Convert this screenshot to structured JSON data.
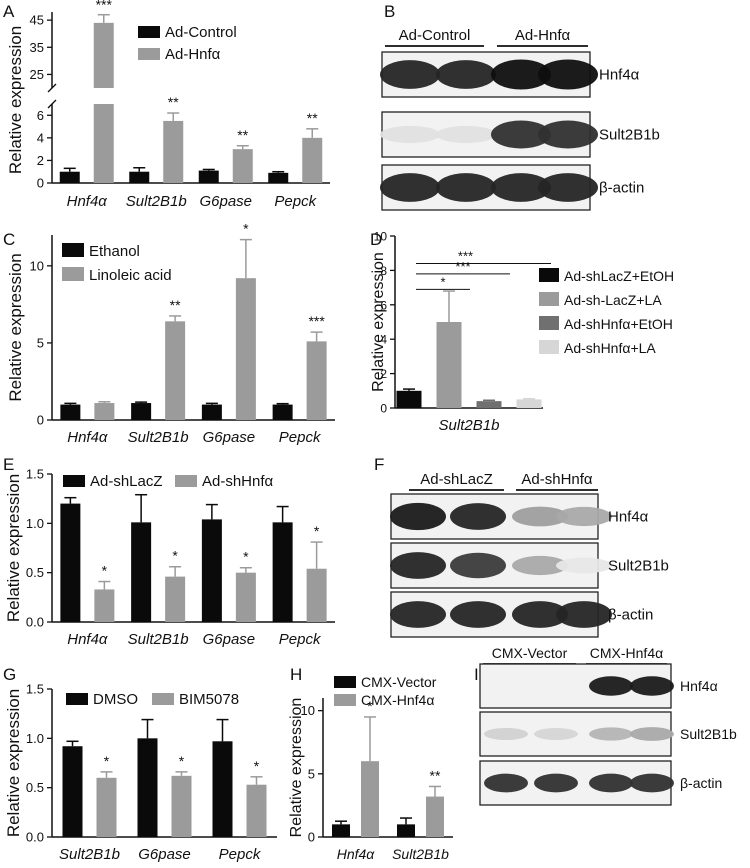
{
  "figure": {
    "background": "#ffffff"
  },
  "colors": {
    "black": "#0a0a0a",
    "gray": "#9b9b9b",
    "dark_gray": "#707070",
    "light_gray": "#d6d6d6"
  },
  "chart_data": [
    {
      "panel": "A",
      "type": "bar",
      "ylabel": "Relative expression",
      "categories": [
        "Hnf4α",
        "Sult2B1b",
        "G6pase",
        "Pepck"
      ],
      "broken_axis": {
        "lower_ticks": [
          0,
          2,
          4,
          6
        ],
        "upper_ticks": [
          25,
          35,
          45
        ]
      },
      "legend": [
        "Ad-Control",
        "Ad-Hnfα"
      ],
      "series": [
        {
          "name": "Ad-Control",
          "values": [
            1.0,
            1.0,
            1.1,
            0.9
          ],
          "errors": [
            0.3,
            0.35,
            0.1,
            0.1
          ],
          "color": "#0a0a0a"
        },
        {
          "name": "Ad-Hnfα",
          "values": [
            44,
            5.5,
            3.0,
            4.0
          ],
          "errors": [
            3,
            0.7,
            0.3,
            0.8
          ],
          "color": "#9b9b9b"
        }
      ],
      "annotations": [
        "***",
        "**",
        "**",
        "**"
      ]
    },
    {
      "panel": "C",
      "type": "bar",
      "ylabel": "Relative expression",
      "categories": [
        "Hnf4α",
        "Sult2B1b",
        "G6pase",
        "Pepck"
      ],
      "ylim": [
        0,
        12
      ],
      "yticks": [
        0,
        5,
        10
      ],
      "legend": [
        "Ethanol",
        "Linoleic acid"
      ],
      "series": [
        {
          "name": "Ethanol",
          "values": [
            1.0,
            1.1,
            1.0,
            1.0
          ],
          "errors": [
            0.08,
            0.06,
            0.08,
            0.06
          ],
          "color": "#0a0a0a"
        },
        {
          "name": "Linoleic acid",
          "values": [
            1.1,
            6.4,
            9.2,
            5.1
          ],
          "errors": [
            0.08,
            0.35,
            2.5,
            0.6
          ],
          "color": "#9b9b9b"
        }
      ],
      "annotations": [
        "",
        "**",
        "*",
        "***"
      ]
    },
    {
      "panel": "D",
      "type": "bar",
      "ylabel": "Relative expression",
      "categories": [
        "Sult2B1b"
      ],
      "ylim": [
        0,
        10
      ],
      "yticks": [
        0,
        2,
        4,
        6,
        8,
        10
      ],
      "legend": [
        "Ad-shLacZ+EtOH",
        "Ad-sh-LacZ+LA",
        "Ad-shHnfα+EtOH",
        "Ad-shHnfα+LA"
      ],
      "series": [
        {
          "name": "Ad-shLacZ+EtOH",
          "values": [
            1.0
          ],
          "errors": [
            0.1
          ],
          "color": "#0a0a0a"
        },
        {
          "name": "Ad-sh-LacZ+LA",
          "values": [
            5.0
          ],
          "errors": [
            1.8
          ],
          "color": "#9b9b9b"
        },
        {
          "name": "Ad-shHnfα+EtOH",
          "values": [
            0.4
          ],
          "errors": [
            0.05
          ],
          "color": "#707070"
        },
        {
          "name": "Ad-shHnfα+LA",
          "values": [
            0.5
          ],
          "errors": [
            0.04
          ],
          "color": "#d6d6d6"
        }
      ],
      "brackets": [
        "***",
        "***",
        "*"
      ]
    },
    {
      "panel": "E",
      "type": "bar",
      "ylabel": "Relative expression",
      "categories": [
        "Hnf4α",
        "Sult2B1b",
        "G6pase",
        "Pepck"
      ],
      "ylim": [
        0,
        1.5
      ],
      "yticks": [
        "0.0",
        "0.5",
        "1.0",
        "1.5"
      ],
      "legend": [
        "Ad-shLacZ",
        "Ad-shHnfα"
      ],
      "series": [
        {
          "name": "Ad-shLacZ",
          "values": [
            1.2,
            1.01,
            1.04,
            1.01
          ],
          "errors": [
            0.06,
            0.28,
            0.15,
            0.16
          ],
          "color": "#0a0a0a"
        },
        {
          "name": "Ad-shHnfα",
          "values": [
            0.33,
            0.46,
            0.5,
            0.54
          ],
          "errors": [
            0.08,
            0.1,
            0.05,
            0.27
          ],
          "color": "#9b9b9b"
        }
      ],
      "annotations": [
        "*",
        "*",
        "*",
        "*"
      ]
    },
    {
      "panel": "G",
      "type": "bar",
      "ylabel": "Relative expression",
      "categories": [
        "Sult2B1b",
        "G6pase",
        "Pepck"
      ],
      "ylim": [
        0,
        1.5
      ],
      "yticks": [
        "0.0",
        "0.5",
        "1.0",
        "1.5"
      ],
      "legend": [
        "DMSO",
        "BIM5078"
      ],
      "series": [
        {
          "name": "DMSO",
          "values": [
            0.92,
            1.0,
            0.97
          ],
          "errors": [
            0.05,
            0.19,
            0.22
          ],
          "color": "#0a0a0a"
        },
        {
          "name": "BIM5078",
          "values": [
            0.6,
            0.62,
            0.53
          ],
          "errors": [
            0.06,
            0.04,
            0.08
          ],
          "color": "#9b9b9b"
        }
      ],
      "annotations": [
        "*",
        "*",
        "*"
      ]
    },
    {
      "panel": "H",
      "type": "bar",
      "ylabel": "Relative expression",
      "categories": [
        "Hnf4α",
        "Sult2B1b"
      ],
      "ylim": [
        0,
        11
      ],
      "yticks": [
        0,
        5,
        10
      ],
      "legend": [
        "CMX-Vector",
        "CMX-Hnf4α"
      ],
      "series": [
        {
          "name": "CMX-Vector",
          "values": [
            1.0,
            1.0
          ],
          "errors": [
            0.25,
            0.5
          ],
          "color": "#0a0a0a"
        },
        {
          "name": "CMX-Hnf4α",
          "values": [
            6.0,
            3.2
          ],
          "errors": [
            3.5,
            0.8
          ],
          "color": "#9b9b9b"
        }
      ],
      "annotations": [
        "*",
        "**"
      ]
    }
  ],
  "blots": [
    {
      "panel": "B",
      "groups": [
        "Ad-Control",
        "Ad-Hnfα"
      ],
      "rows": [
        {
          "label": "Hnf4α",
          "lanes": [
            0.9,
            0.9,
            1.0,
            1.0
          ]
        },
        {
          "label": "Sult2B1b",
          "lanes": [
            0.05,
            0.05,
            0.85,
            0.85
          ]
        },
        {
          "label": "β-actin",
          "lanes": [
            0.9,
            0.9,
            0.9,
            0.9
          ]
        }
      ]
    },
    {
      "panel": "F",
      "groups": [
        "Ad-shLacZ",
        "Ad-shHnfα"
      ],
      "rows": [
        {
          "label": "Hnf4α",
          "lanes": [
            0.95,
            0.9,
            0.35,
            0.3
          ]
        },
        {
          "label": "Sult2B1b",
          "lanes": [
            0.9,
            0.8,
            0.3,
            0.02
          ]
        },
        {
          "label": "β-actin",
          "lanes": [
            0.9,
            0.9,
            0.9,
            0.9
          ]
        }
      ]
    },
    {
      "panel": "I",
      "groups": [
        "CMX-Vector",
        "CMX-Hnf4α"
      ],
      "rows": [
        {
          "label": "Hnf4α",
          "lanes": [
            0.0,
            0.0,
            0.95,
            0.95
          ]
        },
        {
          "label": "Sult2B1b",
          "lanes": [
            0.12,
            0.1,
            0.25,
            0.3
          ]
        },
        {
          "label": "β-actin",
          "lanes": [
            0.85,
            0.85,
            0.85,
            0.85
          ]
        }
      ]
    }
  ]
}
